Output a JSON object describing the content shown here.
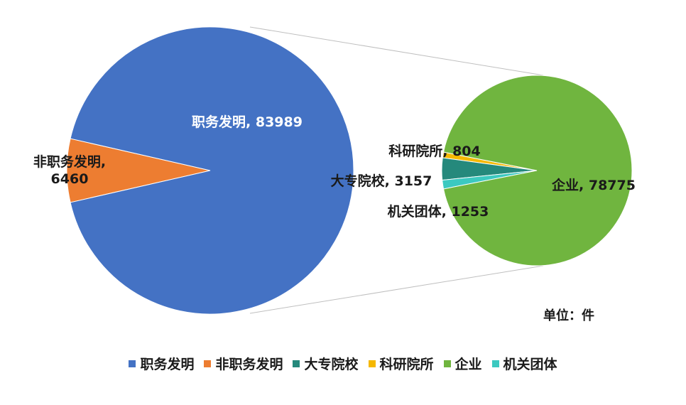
{
  "chart_data": [
    {
      "type": "pie",
      "categories": [
        "职务发明",
        "非职务发明"
      ],
      "values": [
        83989,
        6460
      ],
      "value_labels": [
        "职务发明, 83989",
        "非职务发明, 6460"
      ],
      "colors": [
        "#4472c4",
        "#ed7d31"
      ]
    },
    {
      "type": "pie",
      "categories": [
        "大专院校",
        "科研院所",
        "企业",
        "机关团体"
      ],
      "values": [
        3157,
        804,
        78775,
        1253
      ],
      "value_labels": [
        "大专院校, 3157",
        "科研院所, 804",
        "企业, 78775",
        "机关团体, 1253"
      ],
      "colors": [
        "#25897c",
        "#f5b800",
        "#70b53f",
        "#3cc9c0"
      ]
    }
  ],
  "annotation": "单位：件"
}
